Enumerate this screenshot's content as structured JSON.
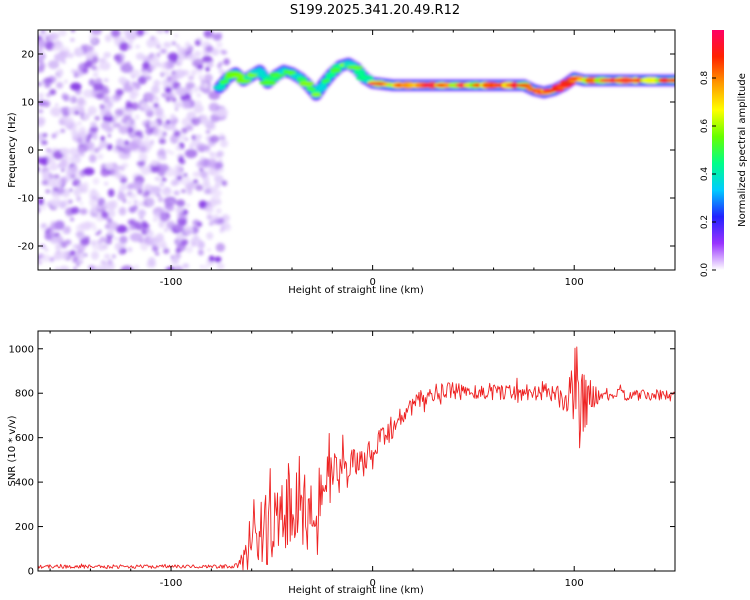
{
  "title": "S199.2025.341.20.49.R12",
  "chart_data": [
    {
      "type": "heatmap",
      "name": "spectrogram",
      "xlabel": "Height of straight line (km)",
      "ylabel": "Frequency (Hz)",
      "xlim": [
        -166,
        150
      ],
      "ylim": [
        -25,
        25
      ],
      "xticks": [
        -100,
        0,
        100
      ],
      "yticks": [
        -20,
        -10,
        0,
        10,
        20
      ],
      "noise_region_x": [
        -166,
        -73
      ],
      "ridge": {
        "x": [
          -76,
          -72,
          -68,
          -64,
          -60,
          -56,
          -52,
          -48,
          -44,
          -40,
          -36,
          -32,
          -28,
          -24,
          -20,
          -16,
          -12,
          -8,
          -4,
          0,
          10,
          20,
          30,
          40,
          50,
          60,
          70,
          75,
          80,
          85,
          90,
          95,
          100,
          105,
          110,
          120,
          130,
          140,
          150
        ],
        "y": [
          13,
          15,
          16,
          14.5,
          15.5,
          16.5,
          14,
          15.5,
          16.5,
          16,
          15,
          13.5,
          11.5,
          14,
          16,
          17.5,
          18,
          17,
          15,
          14,
          13.5,
          13.5,
          13.5,
          13.5,
          13.5,
          13.5,
          13.5,
          13.5,
          12.5,
          12,
          12.5,
          13.5,
          15,
          14.5,
          14.5,
          14.5,
          14.5,
          14.5,
          14.5
        ]
      },
      "colorbar": {
        "label": "Normalized spectral amplitude",
        "ticks": [
          0.0,
          0.2,
          0.4,
          0.6,
          0.8
        ],
        "tick_labels": [
          "0.0",
          "0.2",
          "0.4",
          "0.6",
          "0.8"
        ],
        "range": [
          0,
          1
        ],
        "colormap": [
          "#ffffff",
          "#9933ff",
          "#2222ff",
          "#00ccff",
          "#00ff88",
          "#66ff00",
          "#ffff00",
          "#ff9900",
          "#ff2200",
          "#ff0066"
        ]
      }
    },
    {
      "type": "line",
      "name": "snr",
      "xlabel": "Height of straight line (km)",
      "ylabel": "SNR (10 * v/v)",
      "xlim": [
        -166,
        150
      ],
      "ylim": [
        0,
        1080
      ],
      "xticks": [
        -100,
        0,
        100
      ],
      "yticks": [
        0,
        200,
        400,
        600,
        800,
        1000
      ],
      "color": "#ee2222",
      "series": [
        {
          "name": "SNR",
          "x": [
            -166,
            -140,
            -110,
            -90,
            -75,
            -68,
            -66,
            -63,
            -60,
            -56,
            -52,
            -48,
            -44,
            -40,
            -36,
            -32,
            -28,
            -24,
            -20,
            -16,
            -12,
            -8,
            -4,
            0,
            5,
            10,
            15,
            20,
            25,
            30,
            40,
            50,
            60,
            70,
            80,
            90,
            95,
            98,
            101,
            103,
            105,
            107,
            109,
            112,
            120,
            130,
            140,
            150
          ],
          "y": [
            20,
            20,
            20,
            20,
            20,
            22,
            35,
            70,
            130,
            150,
            200,
            240,
            230,
            280,
            300,
            320,
            350,
            400,
            420,
            430,
            460,
            470,
            500,
            520,
            600,
            650,
            700,
            740,
            780,
            800,
            810,
            805,
            810,
            805,
            810,
            800,
            780,
            760,
            850,
            650,
            800,
            790,
            780,
            790,
            795,
            790,
            790,
            790
          ],
          "noise_amplitude": [
            8,
            8,
            8,
            8,
            8,
            10,
            20,
            90,
            200,
            160,
            170,
            170,
            180,
            200,
            210,
            220,
            170,
            130,
            110,
            100,
            90,
            90,
            80,
            70,
            60,
            55,
            50,
            50,
            40,
            40,
            40,
            40,
            40,
            40,
            40,
            40,
            60,
            120,
            200,
            280,
            200,
            100,
            60,
            35,
            25,
            25,
            25,
            25
          ]
        }
      ]
    }
  ]
}
